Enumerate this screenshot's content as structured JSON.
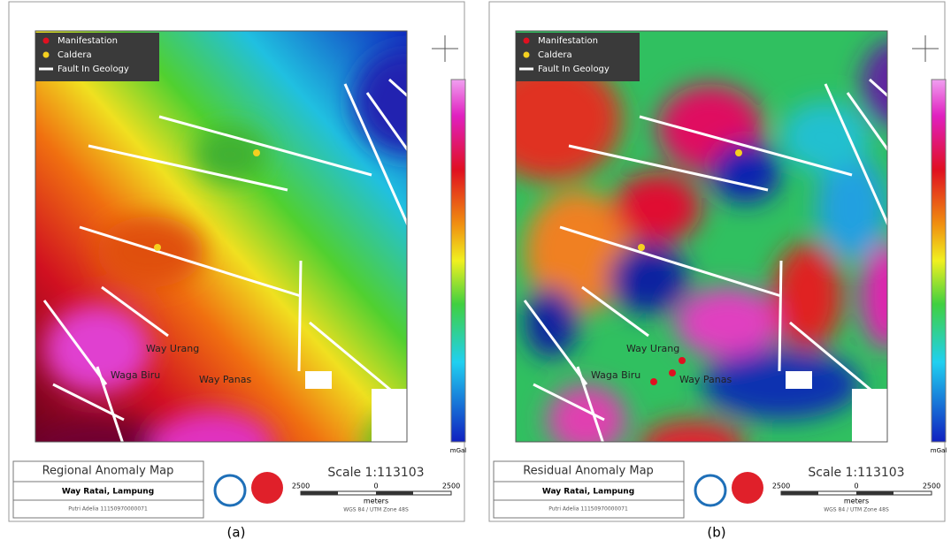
{
  "panels": [
    {
      "caption": "(a)",
      "legend": [
        "Manifestation",
        "Caldera",
        "Fault In Geology"
      ],
      "places": [
        "Way Urang",
        "Waga Biru",
        "Way Panas"
      ],
      "title": "Regional Anomaly Map",
      "location": "Way Ratai, Lampung",
      "author": "Putri Adelia 11150970000071",
      "scale": "Scale 1:113103",
      "scale_ticks": [
        "2500",
        "0",
        "2500"
      ],
      "scale_unit": "meters",
      "projection": "WGS 84 / UTM Zone 48S",
      "colorbar_unit": "mGal"
    },
    {
      "caption": "(b)",
      "legend": [
        "Manifestation",
        "Caldera",
        "Fault In Geology"
      ],
      "places": [
        "Way Urang",
        "Waga Biru",
        "Way Panas"
      ],
      "title": "Residual Anomaly Map",
      "location": "Way Ratai, Lampung",
      "author": "Putri Adelia 11150970000071",
      "scale": "Scale 1:113103",
      "scale_ticks": [
        "2500",
        "0",
        "2500"
      ],
      "scale_unit": "meters",
      "projection": "WGS 84 / UTM Zone 48S",
      "colorbar_unit": "mGal"
    }
  ]
}
